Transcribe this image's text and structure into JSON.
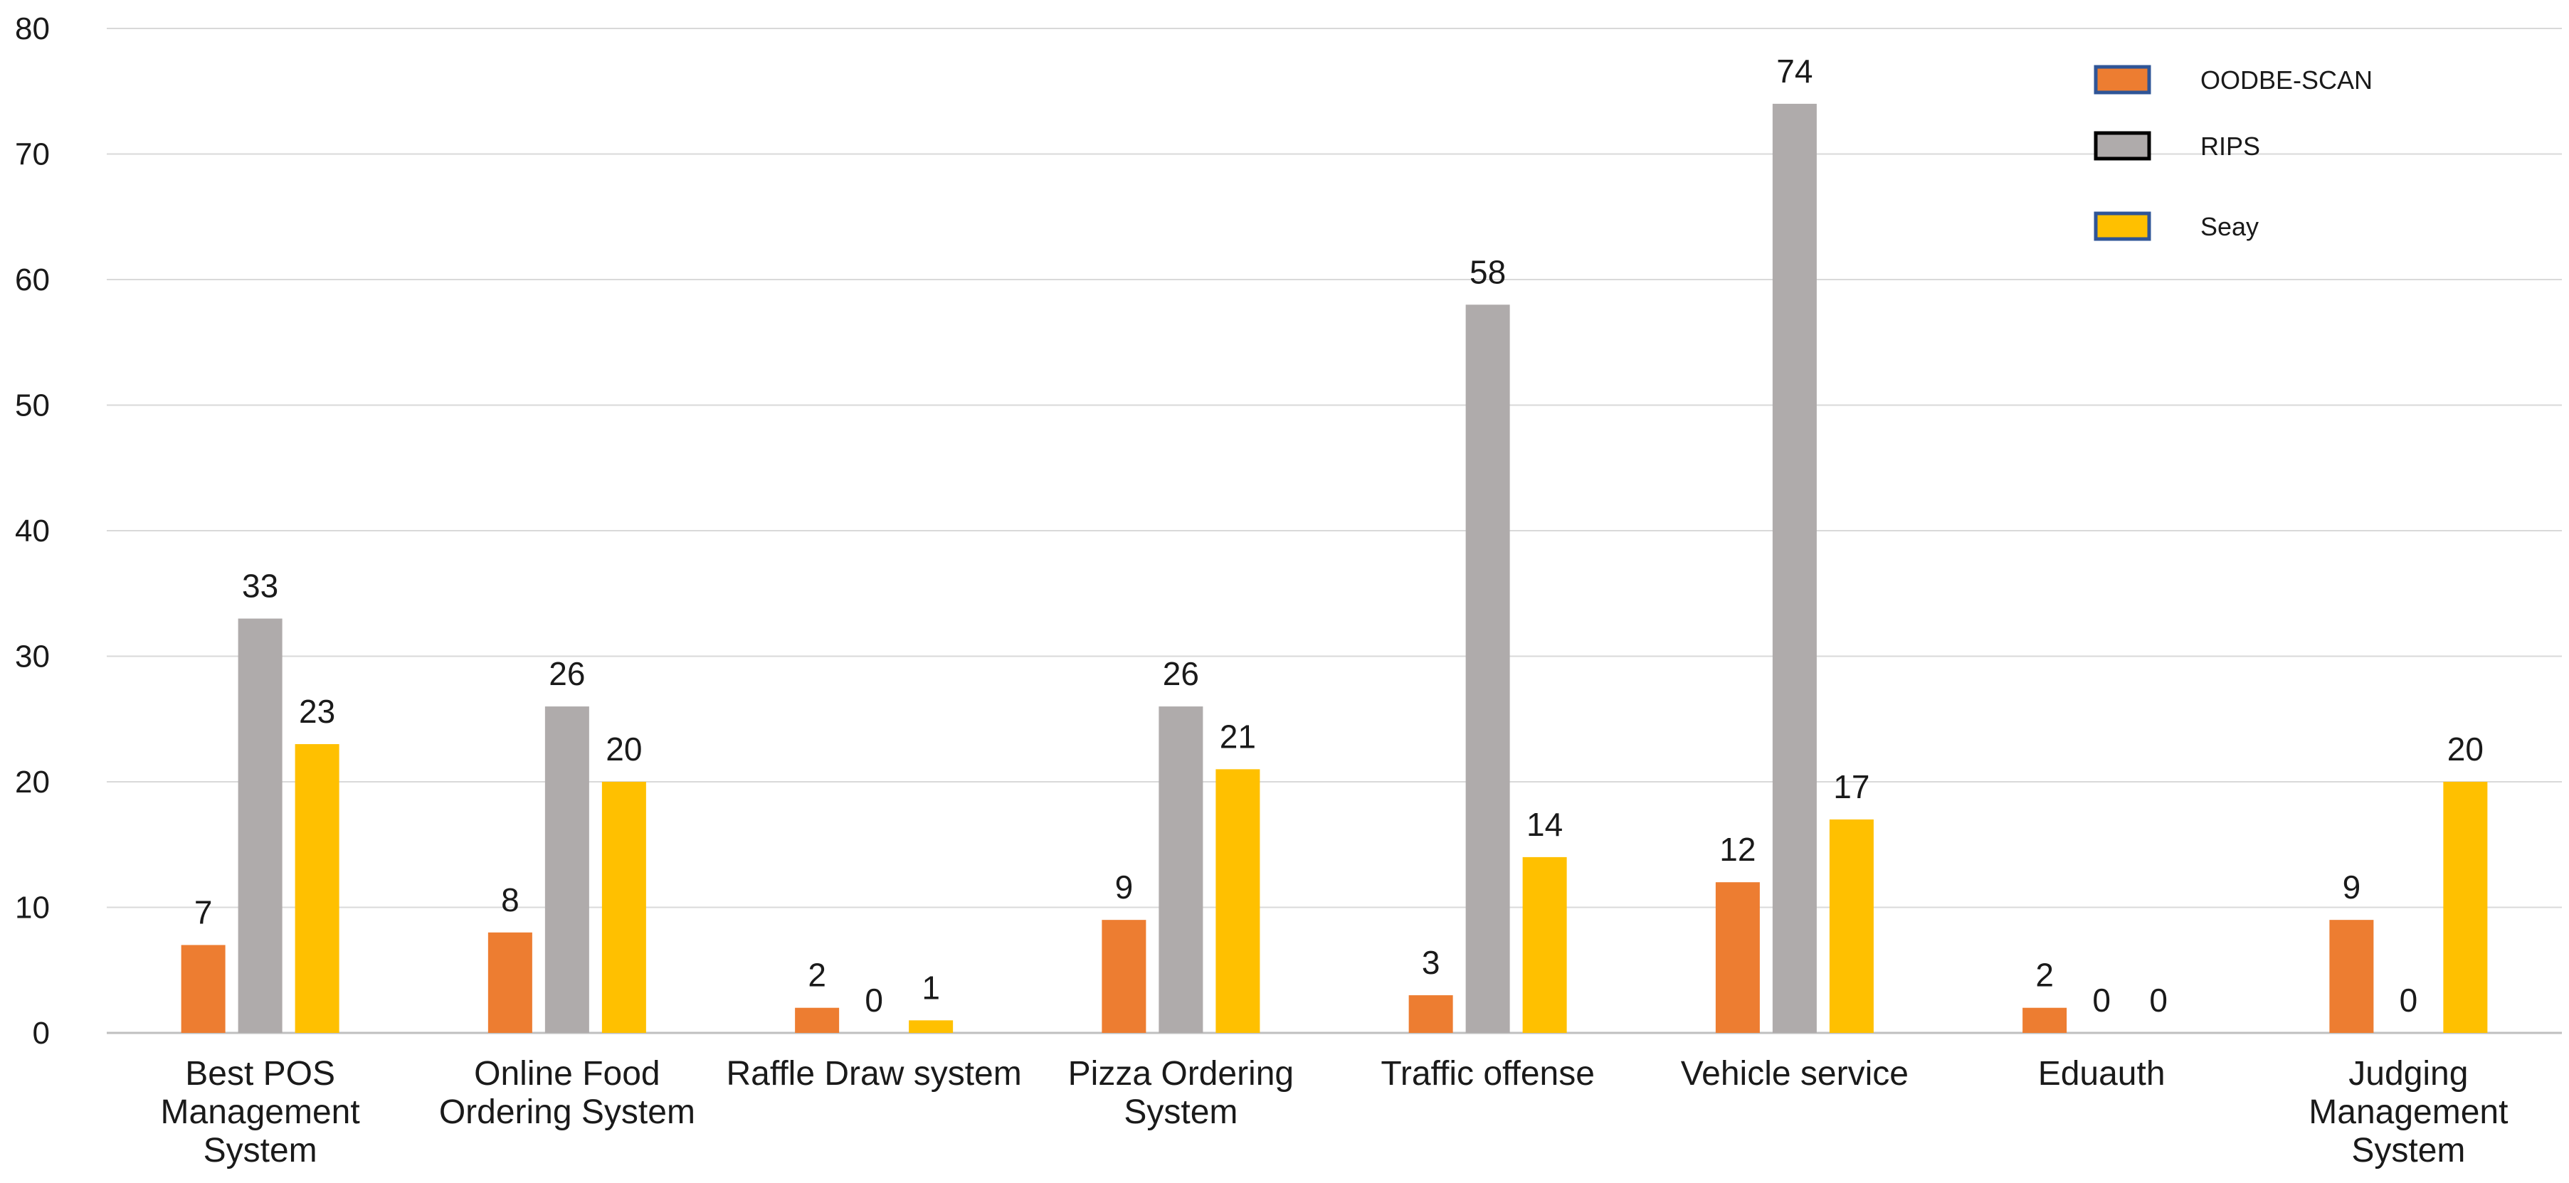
{
  "chart_data": {
    "type": "bar",
    "title": "",
    "xlabel": "",
    "ylabel": "",
    "ylim": [
      0,
      80
    ],
    "yticks": [
      0,
      10,
      20,
      30,
      40,
      50,
      60,
      70,
      80
    ],
    "grid": true,
    "legend_position": "top-right",
    "categories": [
      [
        "Best POS",
        "Management",
        "System"
      ],
      [
        "Online Food",
        "Ordering System"
      ],
      [
        "Raffle Draw system"
      ],
      [
        "Pizza Ordering",
        "System"
      ],
      [
        "Traffic offense"
      ],
      [
        "Vehicle service"
      ],
      [
        "Eduauth"
      ],
      [
        "Judging",
        "Management",
        "System"
      ]
    ],
    "series": [
      {
        "name": "OODBE-SCAN",
        "color": "#ED7D31",
        "values": [
          7,
          8,
          2,
          9,
          3,
          12,
          2,
          9
        ]
      },
      {
        "name": "RIPS",
        "color": "#AFABAB",
        "values": [
          33,
          26,
          0,
          26,
          58,
          74,
          0,
          0
        ]
      },
      {
        "name": "Seay",
        "color": "#FFC000",
        "values": [
          23,
          20,
          1,
          21,
          14,
          17,
          0,
          20
        ]
      }
    ]
  }
}
